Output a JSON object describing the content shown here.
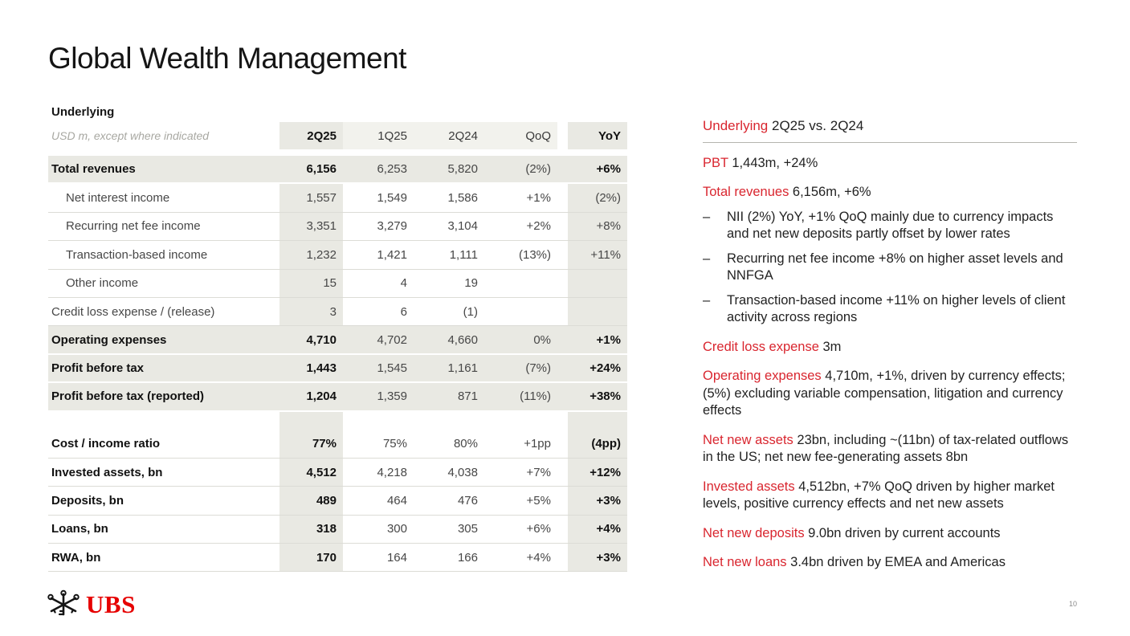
{
  "slide": {
    "title": "Global Wealth Management",
    "page_number": "10",
    "logo_text": "UBS"
  },
  "colors": {
    "accent_red": "#d9262f",
    "logo_red": "#e60000",
    "cell_gray": "#e9e9e3",
    "header_light_gray": "#f2f2ed"
  },
  "table": {
    "caption": "Underlying",
    "unit_note": "USD m, except where indicated",
    "columns": [
      "2Q25",
      "1Q25",
      "2Q24",
      "QoQ",
      "YoY"
    ],
    "rows": [
      {
        "label": "Total revenues",
        "indent": false,
        "bold": true,
        "shaded": true,
        "values": [
          "6,156",
          "6,253",
          "5,820",
          "(2%)",
          "+6%"
        ]
      },
      {
        "label": "Net interest income",
        "indent": true,
        "bold": false,
        "shaded": false,
        "values": [
          "1,557",
          "1,549",
          "1,586",
          "+1%",
          "(2%)"
        ]
      },
      {
        "label": "Recurring net fee income",
        "indent": true,
        "bold": false,
        "shaded": false,
        "values": [
          "3,351",
          "3,279",
          "3,104",
          "+2%",
          "+8%"
        ]
      },
      {
        "label": "Transaction-based income",
        "indent": true,
        "bold": false,
        "shaded": false,
        "values": [
          "1,232",
          "1,421",
          "1,111",
          "(13%)",
          "+11%"
        ]
      },
      {
        "label": "Other income",
        "indent": true,
        "bold": false,
        "shaded": false,
        "values": [
          "15",
          "4",
          "19",
          "",
          ""
        ]
      },
      {
        "label": "Credit loss expense / (release)",
        "indent": false,
        "bold": false,
        "shaded": false,
        "values": [
          "3",
          "6",
          "(1)",
          "",
          ""
        ]
      },
      {
        "label": "Operating expenses",
        "indent": false,
        "bold": true,
        "shaded": true,
        "values": [
          "4,710",
          "4,702",
          "4,660",
          "0%",
          "+1%"
        ]
      },
      {
        "label": "Profit before tax",
        "indent": false,
        "bold": true,
        "shaded": true,
        "values": [
          "1,443",
          "1,545",
          "1,161",
          "(7%)",
          "+24%"
        ]
      },
      {
        "label": "Profit before tax (reported)",
        "indent": false,
        "bold": true,
        "shaded": true,
        "values": [
          "1,204",
          "1,359",
          "871",
          "(11%)",
          "+38%"
        ]
      },
      {
        "spacer": true
      },
      {
        "label": "Cost / income ratio",
        "indent": false,
        "bold": true,
        "shaded": false,
        "values": [
          "77%",
          "75%",
          "80%",
          "+1pp",
          "(4pp)"
        ]
      },
      {
        "label": "Invested assets, bn",
        "indent": false,
        "bold": true,
        "shaded": false,
        "values": [
          "4,512",
          "4,218",
          "4,038",
          "+7%",
          "+12%"
        ]
      },
      {
        "label": "Deposits, bn",
        "indent": false,
        "bold": true,
        "shaded": false,
        "values": [
          "489",
          "464",
          "476",
          "+5%",
          "+3%"
        ]
      },
      {
        "label": "Loans, bn",
        "indent": false,
        "bold": true,
        "shaded": false,
        "values": [
          "318",
          "300",
          "305",
          "+6%",
          "+4%"
        ]
      },
      {
        "label": "RWA, bn",
        "indent": false,
        "bold": true,
        "shaded": false,
        "values": [
          "170",
          "164",
          "166",
          "+4%",
          "+3%"
        ]
      }
    ]
  },
  "commentary": {
    "heading": {
      "lead": "Underlying",
      "rest": " 2Q25 vs. 2Q24"
    },
    "items": [
      {
        "type": "para",
        "lead": "PBT",
        "text": " 1,443m, +24%"
      },
      {
        "type": "para",
        "lead": "Total revenues",
        "text": " 6,156m, +6%"
      },
      {
        "type": "bullet",
        "text": "NII (2%) YoY, +1% QoQ mainly due to currency impacts and net new deposits partly offset by lower rates"
      },
      {
        "type": "bullet",
        "text": "Recurring net fee income +8% on higher asset levels and NNFGA"
      },
      {
        "type": "bullet",
        "text": "Transaction-based income +11% on higher levels of client activity across regions"
      },
      {
        "type": "para",
        "lead": "Credit loss expense",
        "text": " 3m"
      },
      {
        "type": "para",
        "lead": "Operating expenses",
        "text": " 4,710m, +1%, driven by currency effects; (5%) excluding variable compensation, litigation and currency effects"
      },
      {
        "type": "para",
        "lead": "Net new assets",
        "text": " 23bn, including ~(11bn) of tax-related outflows in the US; net new fee-generating assets 8bn"
      },
      {
        "type": "para",
        "lead": "Invested assets",
        "text": " 4,512bn, +7% QoQ driven by higher market levels, positive currency effects and net new assets"
      },
      {
        "type": "para",
        "lead": "Net new deposits",
        "text": " 9.0bn driven by current accounts"
      },
      {
        "type": "para",
        "lead": "Net new loans",
        "text": " 3.4bn driven by EMEA and Americas"
      }
    ]
  }
}
